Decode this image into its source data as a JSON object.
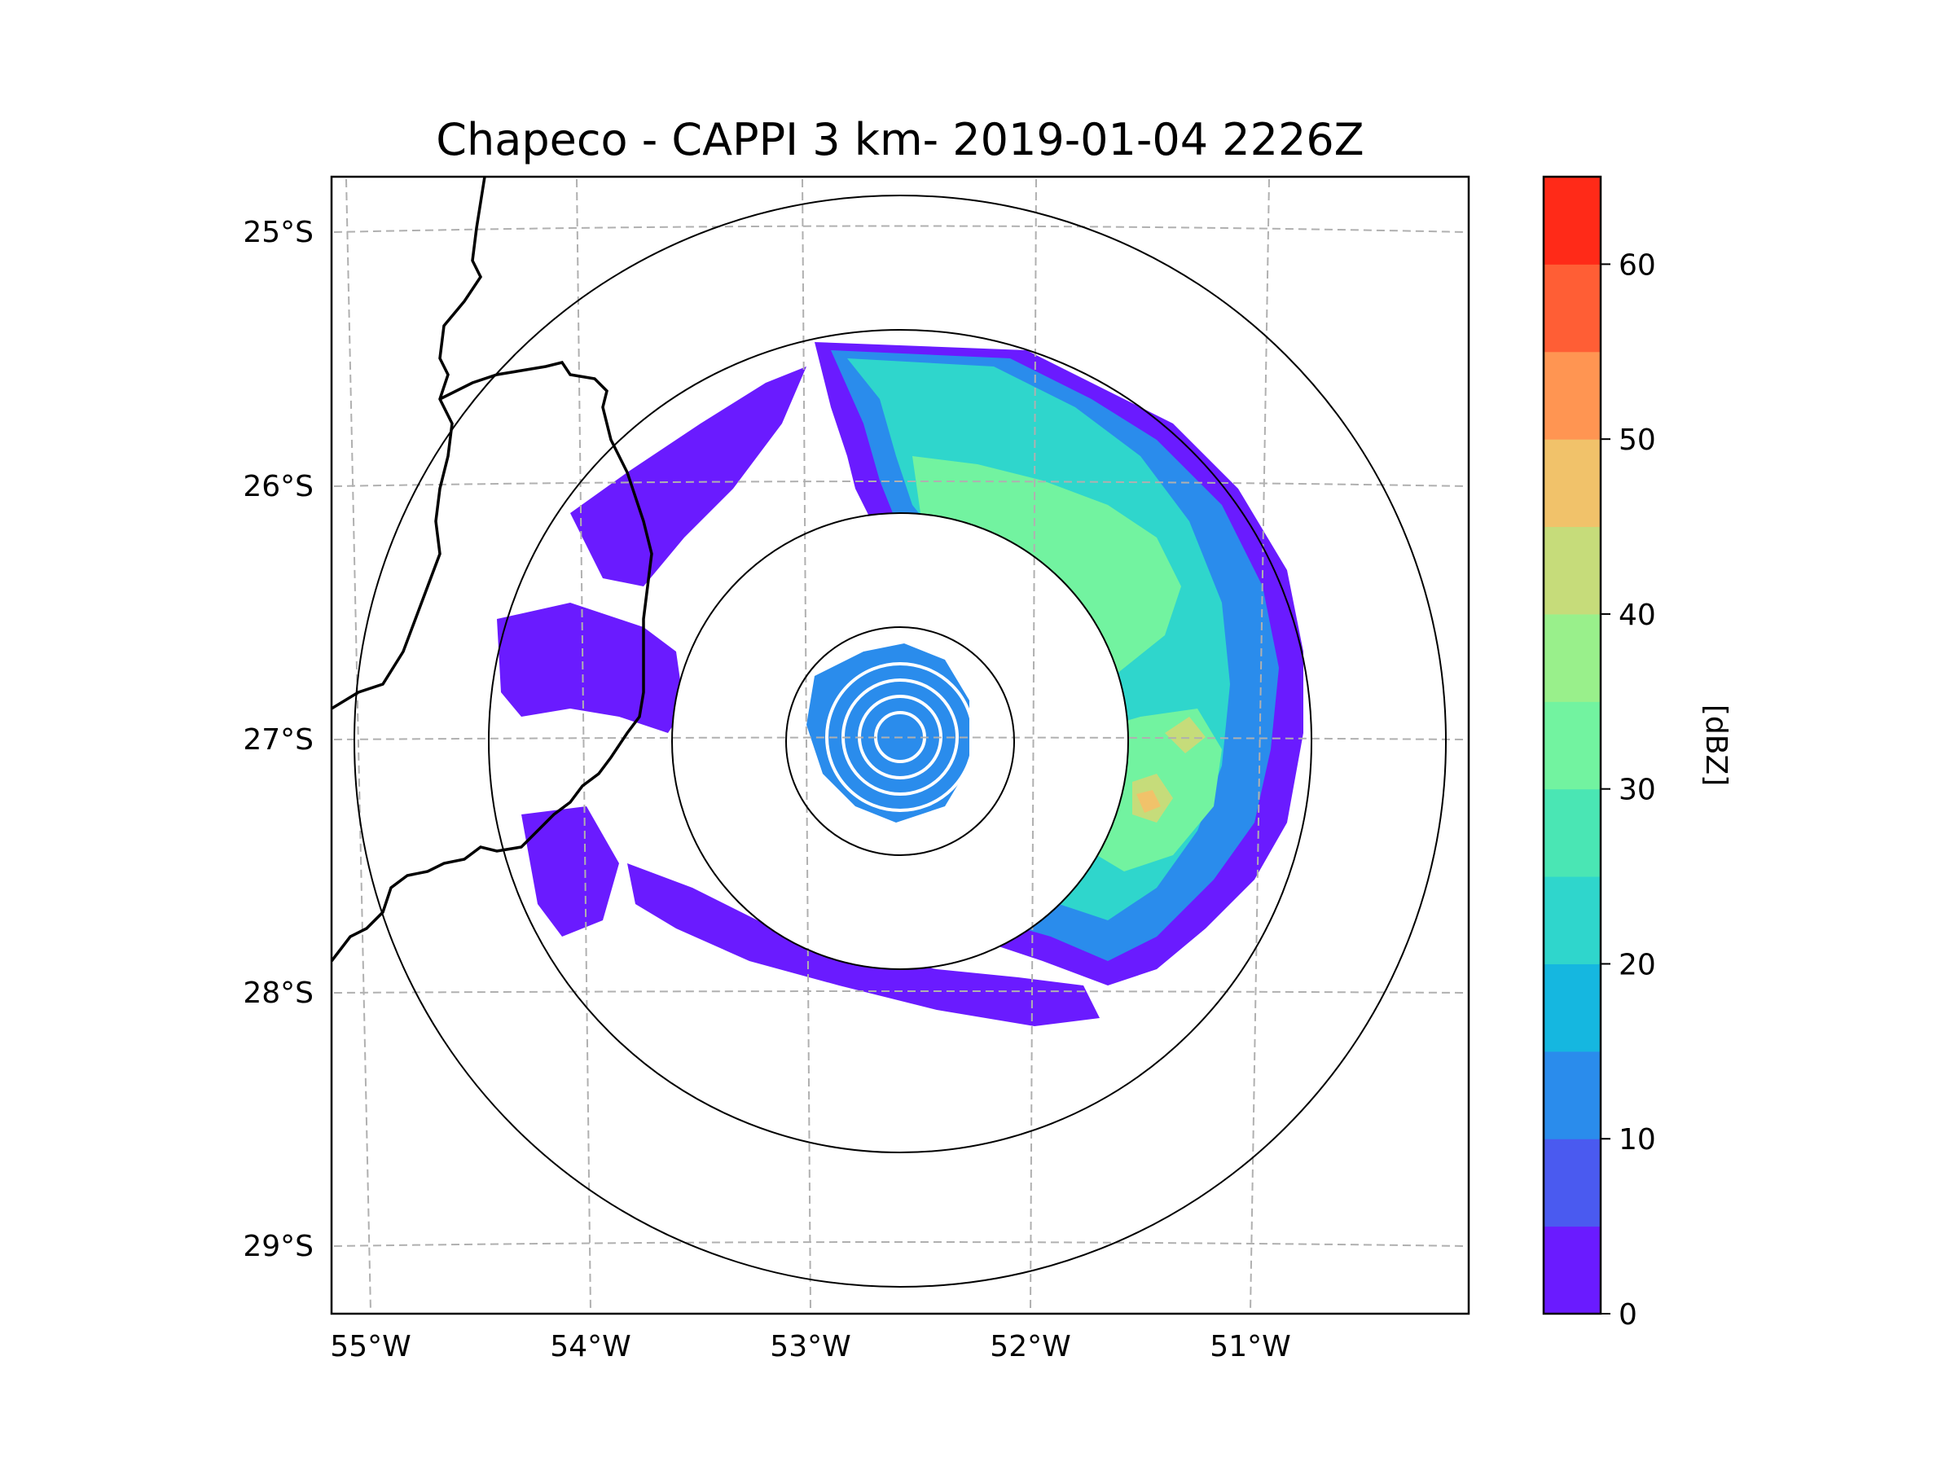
{
  "title": "Chapeco - CAPPI 3 km- 2019-01-04 2226Z",
  "map": {
    "lon_labels": [
      "55°W",
      "54°W",
      "53°W",
      "52°W",
      "51°W"
    ],
    "lat_labels": [
      "25°S",
      "26°S",
      "27°S",
      "28°S",
      "29°S"
    ],
    "radar_site": "Chapeco",
    "range_rings": 4
  },
  "colorbar": {
    "label": "[dBZ]",
    "tick_labels": [
      "0",
      "10",
      "20",
      "30",
      "40",
      "50",
      "60"
    ],
    "range": [
      0,
      65
    ],
    "levels": [
      0,
      5,
      10,
      15,
      20,
      25,
      30,
      35,
      40,
      45,
      50,
      55,
      60,
      65
    ],
    "colors": [
      "#6a1bff",
      "#4a5af0",
      "#2a8cec",
      "#15b7e0",
      "#2fd6cc",
      "#4ae6b4",
      "#72f3a0",
      "#99f08b",
      "#c6dc7a",
      "#f1c26a",
      "#ff9552",
      "#ff5e35",
      "#ff2a18"
    ]
  }
}
